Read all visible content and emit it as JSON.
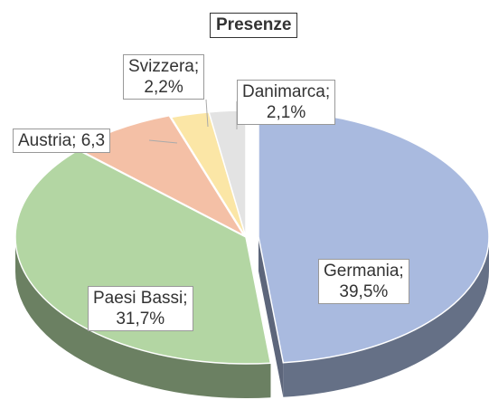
{
  "chart_data": {
    "type": "pie",
    "title": "Presenze",
    "categories": [
      "Germania",
      "Paesi Bassi",
      "Austria",
      "Svizzera",
      "Danimarca"
    ],
    "values": [
      39.5,
      31.7,
      6.3,
      2.2,
      2.1
    ],
    "value_labels": [
      "Germania;\n39,5%",
      "Paesi Bassi;\n31,7%",
      "Austria; 6,3",
      "Svizzera;\n2,2%",
      "Danimarca;\n2,1%"
    ],
    "colors": [
      "#a9badf",
      "#b3d6a3",
      "#f4c0a6",
      "#fbe6a6",
      "#e3e3e3"
    ]
  }
}
